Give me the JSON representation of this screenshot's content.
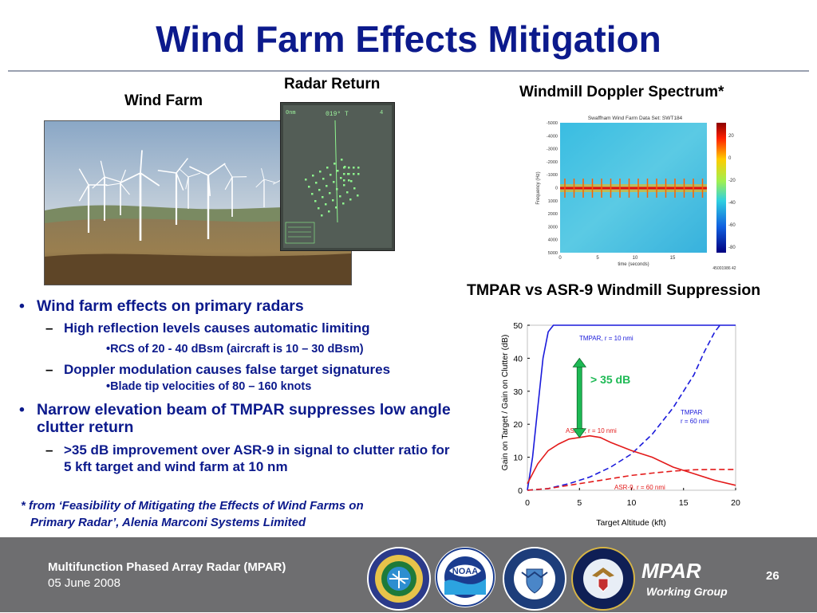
{
  "title": "Wind Farm Effects Mitigation",
  "captions": {
    "wind_farm": "Wind Farm",
    "radar_return": "Radar Return",
    "doppler": "Windmill Doppler Spectrum*",
    "tmpar_vs": "TMPAR vs ASR-9 Windmill Suppression"
  },
  "radar_screen": {
    "top_left": "0nm",
    "bearing": "019° T",
    "top_right": "4"
  },
  "spectrum": {
    "title": "Swaffham Wind Farm Data Set: SWT184",
    "ylabel": "Frequency (Hz)",
    "xlabel": "time (seconds)",
    "yticks": [
      "-5000",
      "-4000",
      "-3000",
      "-2000",
      "-1000",
      "0",
      "1000",
      "2000",
      "3000",
      "4000",
      "5000"
    ],
    "xticks": [
      "0",
      "5",
      "10",
      "15"
    ],
    "colorbar_ticks": [
      "20",
      "0",
      "-20",
      "-40",
      "-60",
      "-80"
    ],
    "id_label": "45001986 42"
  },
  "bullets": [
    {
      "text": "Wind farm effects on primary radars",
      "subs": [
        {
          "text": "High reflection levels causes automatic limiting",
          "subs": [
            "•RCS of 20 - 40 dBsm (aircraft is 10 – 30 dBsm)"
          ]
        },
        {
          "text": "Doppler modulation causes false target signatures",
          "subs": [
            "•Blade tip velocities of 80 – 160 knots"
          ]
        }
      ]
    },
    {
      "text": "Narrow elevation beam of TMPAR suppresses low angle clutter return",
      "subs": [
        {
          "text": ">35 dB improvement over ASR-9 in signal to clutter ratio for 5 kft target and wind farm at 10 nm",
          "subs": []
        }
      ]
    }
  ],
  "footnote_line1": "* from ‘Feasibility of Mitigating the Effects of Wind Farms on",
  "footnote_line2": "Primary Radar’, Alenia Marconi Systems Limited",
  "footer": {
    "line1": "Multifunction Phased Array Radar (MPAR)",
    "line2": "05 June 2008",
    "brand": "MPAR",
    "brand_sub": "Working Group",
    "page_number": "26",
    "logos": [
      "faa-seal",
      "noaa-logo",
      "dhs-seal",
      "dod-seal"
    ],
    "noaa_text": "NOAA"
  },
  "chart_data": {
    "type": "line",
    "xlabel": "Target Altitude (kft)",
    "ylabel": "Gain on Target / Gain on Clutter (dB)",
    "xlim": [
      0,
      20
    ],
    "ylim": [
      0,
      50
    ],
    "xticks": [
      0,
      5,
      10,
      15,
      20
    ],
    "yticks": [
      0,
      10,
      20,
      30,
      40,
      50
    ],
    "annotation": "> 35 dB",
    "series": [
      {
        "name": "TMPAR, r = 10 nmi",
        "color": "#1a1adb",
        "dash": false,
        "x": [
          0,
          0.5,
          1,
          1.5,
          2,
          2.5,
          3,
          3.5,
          4,
          20
        ],
        "y": [
          0,
          10,
          25,
          40,
          48,
          50,
          50,
          50,
          50,
          50
        ]
      },
      {
        "name": "TMPAR r = 60 nmi",
        "color": "#1a1adb",
        "dash": true,
        "x": [
          0,
          2,
          4,
          6,
          8,
          10,
          12,
          14,
          16,
          17,
          18,
          18.5
        ],
        "y": [
          0,
          0.5,
          2,
          4,
          7,
          11,
          17,
          25,
          35,
          42,
          48,
          50
        ]
      },
      {
        "name": "ASR-9, r = 10 nmi",
        "color": "#e31a1a",
        "dash": false,
        "x": [
          0,
          1,
          2,
          3,
          4,
          5,
          6,
          7,
          8,
          10,
          12,
          14,
          16,
          18,
          20
        ],
        "y": [
          2,
          8,
          12,
          14,
          15.5,
          16,
          16.5,
          16,
          14.5,
          12,
          10,
          7,
          5,
          3,
          1.5
        ]
      },
      {
        "name": "ASR-9, r = 60 nmi",
        "color": "#e31a1a",
        "dash": true,
        "x": [
          0,
          2,
          4,
          6,
          8,
          10,
          12,
          14,
          16,
          18,
          20
        ],
        "y": [
          0,
          0.5,
          1.5,
          2.5,
          3.5,
          4.5,
          5.2,
          5.8,
          6.2,
          6.3,
          6.3
        ]
      }
    ],
    "series_labels": {
      "tmpar10": "TMPAR, r = 10 nmi",
      "tmpar60_line1": "TMPAR",
      "tmpar60_line2": "r = 60 nmi",
      "asr10": "ASR-9, r = 10 nmi",
      "asr60": "ASR-9, r = 60 nmi"
    }
  },
  "colors": {
    "title_blue": "#0c1a8c",
    "footer_gray": "#6e6e70",
    "arrow_green": "#1db954",
    "tmpar_blue": "#1a1adb",
    "asr_red": "#e31a1a"
  }
}
